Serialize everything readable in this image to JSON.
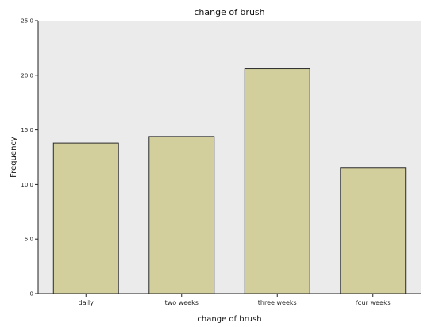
{
  "chart_data": {
    "type": "bar",
    "title": "change of brush",
    "xlabel": "change of brush",
    "ylabel": "Frequency",
    "categories": [
      "daily",
      "two weeks",
      "three weeks",
      "four weeks"
    ],
    "values": [
      13.8,
      14.4,
      20.6,
      11.5
    ],
    "ylim": [
      0,
      25
    ],
    "yticks": [
      0,
      5,
      10,
      15,
      20,
      25
    ],
    "ytick_labels": [
      "0",
      "5.0",
      "10.0",
      "15.0",
      "20.0",
      "25.0"
    ],
    "grid": false,
    "legend": "none",
    "colors": {
      "plot_background": "#ebebeb",
      "bar_fill": "#d3cf9d",
      "bar_stroke": "#2b2b2b"
    }
  }
}
